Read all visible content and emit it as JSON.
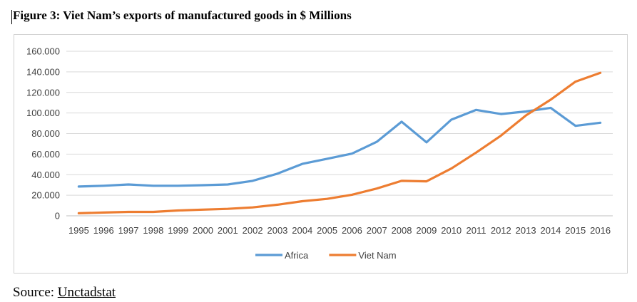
{
  "figure": {
    "title": "Figure 3: Viet Nam’s exports of manufactured goods in $ Millions",
    "source_prefix": "Source: ",
    "source_name": "Unctadstat"
  },
  "chart_data": {
    "type": "line",
    "x": [
      1995,
      1996,
      1997,
      1998,
      1999,
      2000,
      2001,
      2002,
      2003,
      2004,
      2005,
      2006,
      2007,
      2008,
      2009,
      2010,
      2011,
      2012,
      2013,
      2014,
      2015,
      2016
    ],
    "x_tick_labels": [
      "1995",
      "1996",
      "1997",
      "1998",
      "1999",
      "2000",
      "2001",
      "2002",
      "2003",
      "2004",
      "2005",
      "2006",
      "2007",
      "2008",
      "2009",
      "2010",
      "2011",
      "2012",
      "2013",
      "2014",
      "2015",
      "2016"
    ],
    "ylim": [
      0,
      160000
    ],
    "y_ticks": [
      0,
      20000,
      40000,
      60000,
      80000,
      100000,
      120000,
      140000,
      160000
    ],
    "y_tick_labels": [
      "0",
      "20.000",
      "40.000",
      "60.000",
      "80.000",
      "100.000",
      "120.000",
      "140.000",
      "160.000"
    ],
    "grid": true,
    "legend_position": "bottom",
    "series": [
      {
        "name": "Africa",
        "color": "#5B9BD5",
        "values": [
          28500,
          29200,
          30500,
          29200,
          29200,
          29800,
          30500,
          34000,
          41000,
          50500,
          55500,
          60500,
          72000,
          91500,
          71500,
          93500,
          103000,
          99000,
          101500,
          105000,
          87500,
          90500
        ]
      },
      {
        "name": "Viet Nam",
        "color": "#ED7D31",
        "values": [
          2500,
          3200,
          3800,
          3800,
          5200,
          6000,
          6800,
          8200,
          10800,
          14200,
          16500,
          20500,
          26500,
          34000,
          33500,
          46000,
          61500,
          78000,
          97500,
          113000,
          130500,
          139000
        ]
      }
    ]
  }
}
